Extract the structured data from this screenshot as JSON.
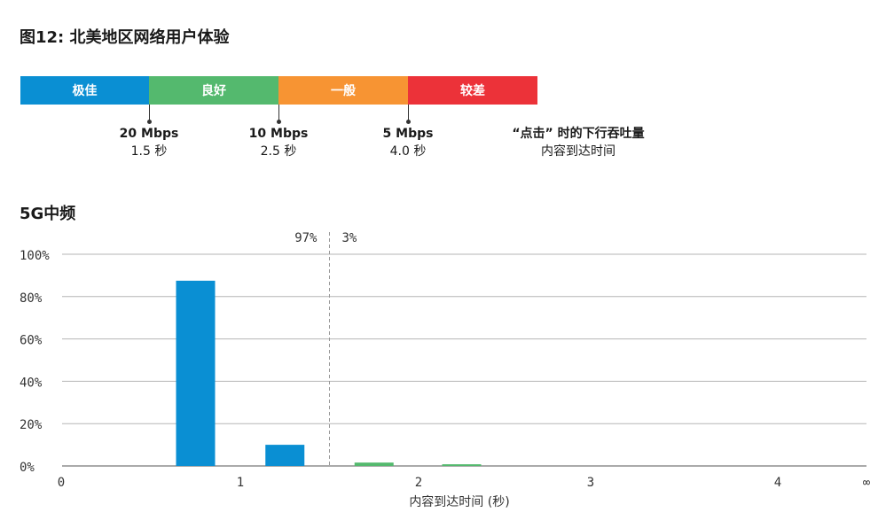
{
  "figure_title": "图12: 北美地区网络用户体验",
  "subtitle": "5G中频",
  "legend_scale": {
    "segments": [
      {
        "label": "极佳",
        "color": "#0a8fd3"
      },
      {
        "label": "良好",
        "color": "#54b96e"
      },
      {
        "label": "一般",
        "color": "#f79433"
      },
      {
        "label": "较差",
        "color": "#ec3239"
      }
    ],
    "markers": [
      {
        "speed": "20 Mbps",
        "time": "1.5 秒"
      },
      {
        "speed": "10 Mbps",
        "time": "2.5 秒"
      },
      {
        "speed": "5 Mbps",
        "time": "4.0 秒"
      }
    ],
    "caption_line1": "“点击” 时的下行吞吐量",
    "caption_line2": "内容到达时间"
  },
  "chart_data": {
    "type": "bar",
    "xlabel": "内容到达时间 (秒)",
    "ylabel": "",
    "ylim": [
      0,
      100
    ],
    "yticks": [
      "0%",
      "20%",
      "40%",
      "60%",
      "80%",
      "100%"
    ],
    "xticks": [
      "0",
      "1",
      "2",
      "3",
      "4",
      "∞"
    ],
    "grid": true,
    "threshold": {
      "x": 1.5,
      "left_label": "97%",
      "right_label": "3%"
    },
    "bars": [
      {
        "x": 0.75,
        "value": 87.5,
        "color": "#0a8fd3"
      },
      {
        "x": 1.25,
        "value": 10,
        "color": "#0a8fd3"
      },
      {
        "x": 1.75,
        "value": 1.6,
        "color": "#54b96e"
      },
      {
        "x": 2.25,
        "value": 0.8,
        "color": "#54b96e"
      }
    ]
  }
}
